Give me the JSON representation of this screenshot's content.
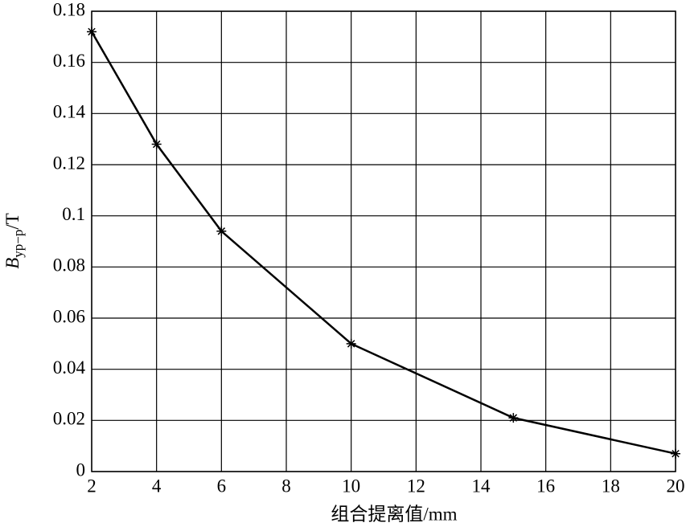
{
  "chart_data": {
    "type": "line",
    "xlabel": "组合提离值/mm",
    "ylabel": {
      "symbol": "B",
      "subscript": "yp−p",
      "unit": "/T"
    },
    "x": [
      2,
      4,
      6,
      10,
      15,
      20
    ],
    "series": [
      {
        "color": "#000000",
        "values": [
          0.172,
          0.128,
          0.094,
          0.05,
          0.021,
          0.007
        ]
      }
    ],
    "xlim": [
      2,
      20
    ],
    "xticks": [
      2,
      4,
      6,
      8,
      10,
      12,
      14,
      16,
      18,
      20
    ],
    "ylim": [
      0,
      0.18
    ],
    "yticks": [
      0,
      0.02,
      0.04,
      0.06,
      0.08,
      0.1,
      0.12,
      0.14,
      0.16,
      0.18
    ],
    "grid": true,
    "marker": "star"
  }
}
